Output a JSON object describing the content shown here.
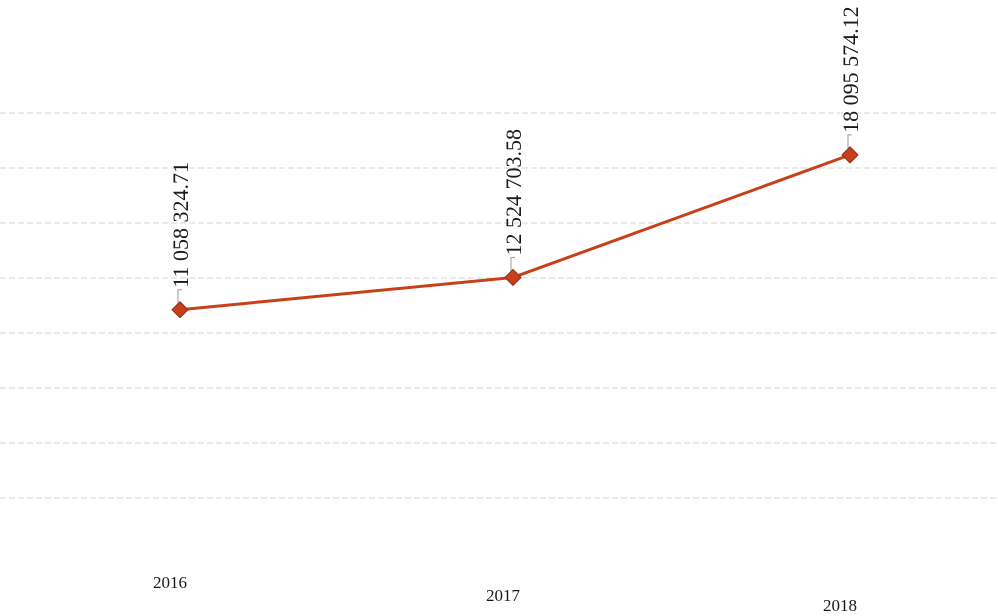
{
  "chart_data": {
    "type": "line",
    "categories": [
      "2016",
      "2017",
      "2018"
    ],
    "series": [
      {
        "values": [
          11058324.71,
          12524703.58,
          18095574.12
        ],
        "value_labels": [
          "11 058 324.71",
          "12 524 703.58",
          "18 095 574.12"
        ],
        "color": "#c8401a"
      }
    ],
    "title": "",
    "xlabel": "",
    "ylabel": "",
    "ylim": [
      0,
      20000000
    ],
    "y_gridlines": [
      2500000,
      5000000,
      7500000,
      10000000,
      12500000,
      15000000,
      17500000,
      20000000
    ],
    "grid": true,
    "legend": "none",
    "data_label_orientation": "vertical"
  }
}
